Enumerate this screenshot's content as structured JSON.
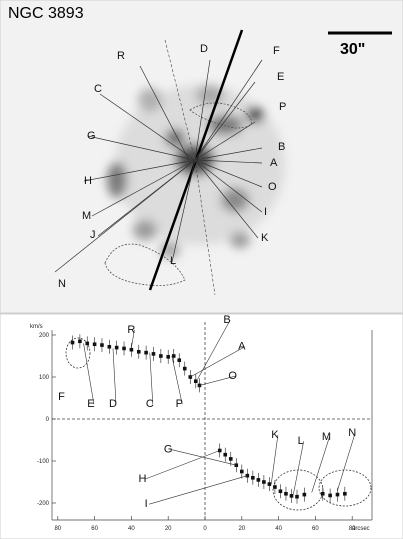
{
  "top_panel": {
    "title": "NGC 3893",
    "scale_bar_label": "30\"",
    "region_labels": [
      {
        "id": "R",
        "text": "R"
      },
      {
        "id": "D",
        "text": "D"
      },
      {
        "id": "F",
        "text": "F"
      },
      {
        "id": "C",
        "text": "C"
      },
      {
        "id": "E",
        "text": "E"
      },
      {
        "id": "P",
        "text": "P"
      },
      {
        "id": "B",
        "text": "B"
      },
      {
        "id": "G",
        "text": "G"
      },
      {
        "id": "A",
        "text": "A"
      },
      {
        "id": "H",
        "text": "H"
      },
      {
        "id": "O",
        "text": "O"
      },
      {
        "id": "M",
        "text": "M"
      },
      {
        "id": "I",
        "text": "I"
      },
      {
        "id": "J",
        "text": "J"
      },
      {
        "id": "K",
        "text": "K"
      },
      {
        "id": "L",
        "text": "L"
      },
      {
        "id": "N",
        "text": "N"
      }
    ]
  },
  "chart_data": {
    "type": "scatter",
    "ylabel": "km/s",
    "xlabel": "arcsec",
    "x_ticks": [
      "80",
      "60",
      "40",
      "20",
      "0",
      "20",
      "40",
      "60",
      "80"
    ],
    "y_ticks": [
      "200",
      "100",
      "0",
      "-100",
      "-200"
    ],
    "ylim": [
      -240,
      240
    ],
    "x_reversed_left": true,
    "grid": false,
    "points": [
      {
        "x": -72,
        "y": 182
      },
      {
        "x": -68,
        "y": 185
      },
      {
        "x": -64,
        "y": 180
      },
      {
        "x": -60,
        "y": 178
      },
      {
        "x": -56,
        "y": 176
      },
      {
        "x": -52,
        "y": 172
      },
      {
        "x": -48,
        "y": 170
      },
      {
        "x": -44,
        "y": 168
      },
      {
        "x": -40,
        "y": 165
      },
      {
        "x": -36,
        "y": 160
      },
      {
        "x": -32,
        "y": 158
      },
      {
        "x": -28,
        "y": 155
      },
      {
        "x": -24,
        "y": 150
      },
      {
        "x": -20,
        "y": 148
      },
      {
        "x": -17,
        "y": 150
      },
      {
        "x": -14,
        "y": 140
      },
      {
        "x": -11,
        "y": 120
      },
      {
        "x": -8,
        "y": 100
      },
      {
        "x": -5,
        "y": 90
      },
      {
        "x": -3,
        "y": 80
      },
      {
        "x": 8,
        "y": -75
      },
      {
        "x": 11,
        "y": -85
      },
      {
        "x": 14,
        "y": -95
      },
      {
        "x": 17,
        "y": -110
      },
      {
        "x": 20,
        "y": -125
      },
      {
        "x": 23,
        "y": -135
      },
      {
        "x": 26,
        "y": -140
      },
      {
        "x": 29,
        "y": -145
      },
      {
        "x": 32,
        "y": -150
      },
      {
        "x": 35,
        "y": -155
      },
      {
        "x": 38,
        "y": -162
      },
      {
        "x": 41,
        "y": -172
      },
      {
        "x": 44,
        "y": -178
      },
      {
        "x": 47,
        "y": -183
      },
      {
        "x": 50,
        "y": -185
      },
      {
        "x": 54,
        "y": -180
      },
      {
        "x": 64,
        "y": -178
      },
      {
        "x": 68,
        "y": -182
      },
      {
        "x": 72,
        "y": -180
      },
      {
        "x": 76,
        "y": -178
      }
    ],
    "annotations": [
      {
        "text": "R",
        "x": -40,
        "y": 205
      },
      {
        "text": "B",
        "x": 12,
        "y": 228
      },
      {
        "text": "A",
        "x": 20,
        "y": 165
      },
      {
        "text": "O",
        "x": 15,
        "y": 95
      },
      {
        "text": "F",
        "x": -78,
        "y": 45
      },
      {
        "text": "E",
        "x": -62,
        "y": 28
      },
      {
        "text": "D",
        "x": -50,
        "y": 28
      },
      {
        "text": "C",
        "x": -30,
        "y": 28
      },
      {
        "text": "P",
        "x": -14,
        "y": 28
      },
      {
        "text": "G",
        "x": -20,
        "y": -80
      },
      {
        "text": "H",
        "x": -34,
        "y": -150
      },
      {
        "text": "I",
        "x": -32,
        "y": -210
      },
      {
        "text": "K",
        "x": 38,
        "y": -45
      },
      {
        "text": "L",
        "x": 52,
        "y": -60
      },
      {
        "text": "M",
        "x": 66,
        "y": -50
      },
      {
        "text": "N",
        "x": 80,
        "y": -40
      }
    ]
  }
}
